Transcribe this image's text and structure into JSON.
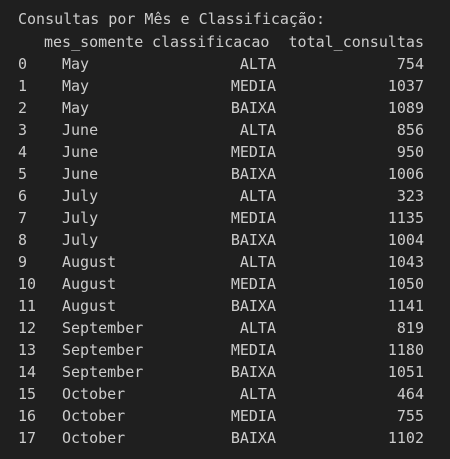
{
  "title": "Consultas por Mês e Classificação:",
  "columns": {
    "mes": "mes_somente",
    "classificacao": "classificacao",
    "total": "total_consultas"
  },
  "rows": [
    {
      "index": "0",
      "mes": "May",
      "classificacao": "ALTA",
      "total": "754"
    },
    {
      "index": "1",
      "mes": "May",
      "classificacao": "MEDIA",
      "total": "1037"
    },
    {
      "index": "2",
      "mes": "May",
      "classificacao": "BAIXA",
      "total": "1089"
    },
    {
      "index": "3",
      "mes": "June",
      "classificacao": "ALTA",
      "total": "856"
    },
    {
      "index": "4",
      "mes": "June",
      "classificacao": "MEDIA",
      "total": "950"
    },
    {
      "index": "5",
      "mes": "June",
      "classificacao": "BAIXA",
      "total": "1006"
    },
    {
      "index": "6",
      "mes": "July",
      "classificacao": "ALTA",
      "total": "323"
    },
    {
      "index": "7",
      "mes": "July",
      "classificacao": "MEDIA",
      "total": "1135"
    },
    {
      "index": "8",
      "mes": "July",
      "classificacao": "BAIXA",
      "total": "1004"
    },
    {
      "index": "9",
      "mes": "August",
      "classificacao": "ALTA",
      "total": "1043"
    },
    {
      "index": "10",
      "mes": "August",
      "classificacao": "MEDIA",
      "total": "1050"
    },
    {
      "index": "11",
      "mes": "August",
      "classificacao": "BAIXA",
      "total": "1141"
    },
    {
      "index": "12",
      "mes": "September",
      "classificacao": "ALTA",
      "total": "819"
    },
    {
      "index": "13",
      "mes": "September",
      "classificacao": "MEDIA",
      "total": "1180"
    },
    {
      "index": "14",
      "mes": "September",
      "classificacao": "BAIXA",
      "total": "1051"
    },
    {
      "index": "15",
      "mes": "October",
      "classificacao": "ALTA",
      "total": "464"
    },
    {
      "index": "16",
      "mes": "October",
      "classificacao": "MEDIA",
      "total": "755"
    },
    {
      "index": "17",
      "mes": "October",
      "classificacao": "BAIXA",
      "total": "1102"
    }
  ],
  "colors": {
    "background": "#1f1f1f",
    "text": "#cccccc"
  }
}
